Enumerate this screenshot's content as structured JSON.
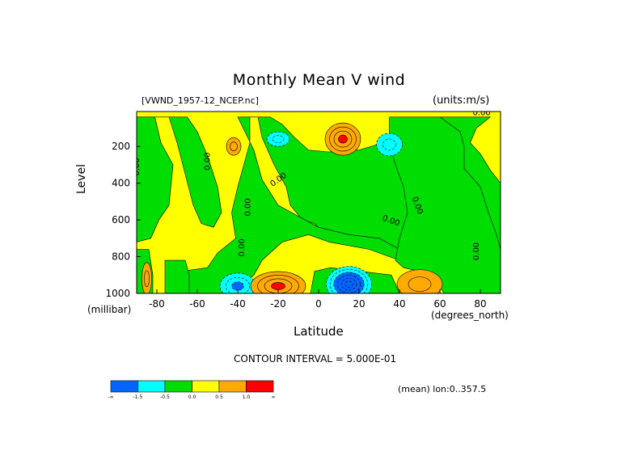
{
  "chart_data": {
    "type": "heatmap",
    "title": "Monthly Mean V wind",
    "dataset": "[VWND_1957-12_NCEP.nc]",
    "units": "(units:m/s)",
    "xlabel": "Latitude",
    "xunits": "(degrees_north)",
    "ylabel": "Level",
    "yunits": "(millibar)",
    "xlim": [
      -90,
      90
    ],
    "ylim": [
      1000,
      10
    ],
    "x_ticks": [
      "-80",
      "-60",
      "-40",
      "-20",
      "0",
      "20",
      "40",
      "60",
      "80"
    ],
    "y_ticks": [
      "200",
      "400",
      "600",
      "800",
      "1000"
    ],
    "contour_interval_label": "CONTOUR INTERVAL = 5.000E-01",
    "mean_label": "(mean) lon:0..357.5",
    "colorbar": {
      "labels": [
        "-∞",
        "-1.5",
        "-0.5",
        "0.0",
        "0.5",
        "1.0",
        "∞"
      ],
      "colors": [
        "#0066ff",
        "#00ffff",
        "#00dd00",
        "#ffff00",
        "#ffaa00",
        "#ff0000"
      ]
    },
    "contour_labels": [
      "0.00",
      "0.00",
      "0.00",
      "0.00",
      "0.00",
      "0.00",
      "0.00",
      "0.00",
      "0.00"
    ],
    "features": [
      {
        "lat": 12,
        "level": 160,
        "value": 2.0,
        "category": "max"
      },
      {
        "lat": 35,
        "level": 190,
        "value": -1.0,
        "category": "min"
      },
      {
        "lat": -20,
        "level": 160,
        "value": -1.0,
        "category": "min"
      },
      {
        "lat": -42,
        "level": 200,
        "value": 0.8,
        "category": "max"
      },
      {
        "lat": 15,
        "level": 950,
        "value": -3.0,
        "category": "min"
      },
      {
        "lat": -40,
        "level": 960,
        "value": -1.3,
        "category": "min"
      },
      {
        "lat": -20,
        "level": 960,
        "value": 1.8,
        "category": "max"
      },
      {
        "lat": 50,
        "level": 950,
        "value": 1.2,
        "category": "max"
      },
      {
        "lat": -85,
        "level": 920,
        "value": 0.8,
        "category": "max"
      }
    ]
  }
}
